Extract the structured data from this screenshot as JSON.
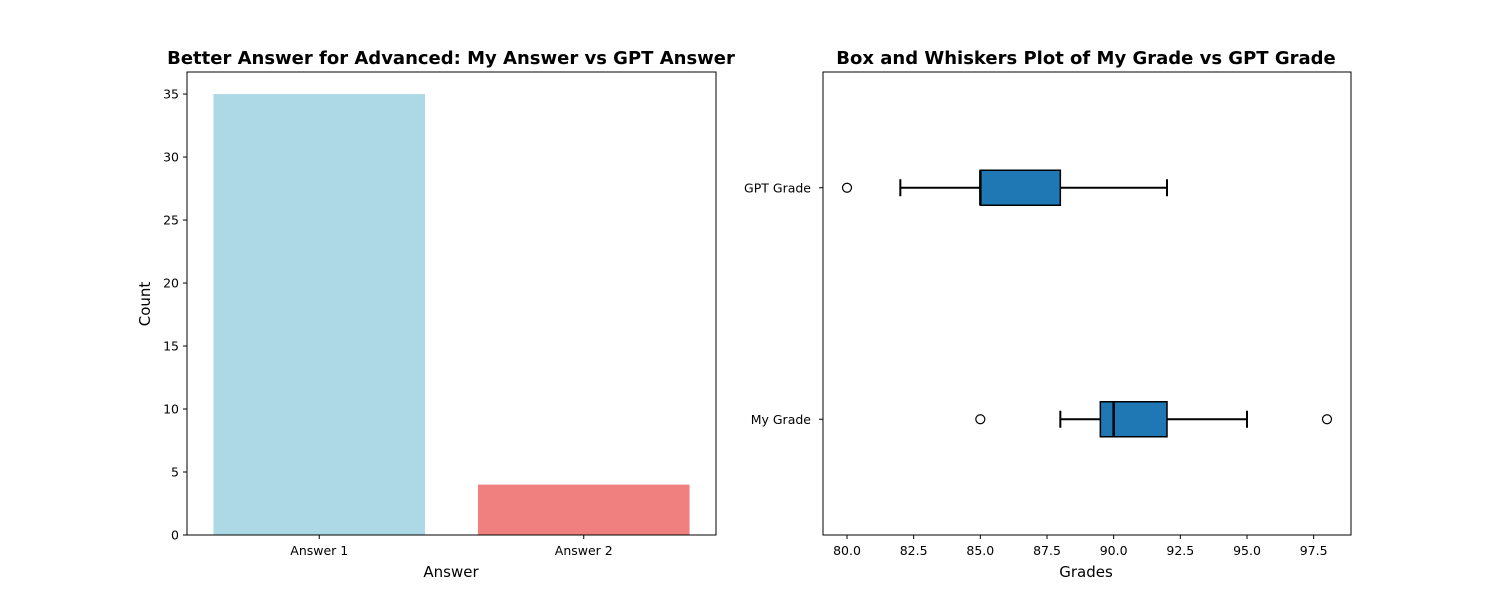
{
  "chart_data": [
    {
      "type": "bar",
      "title": "Better Answer for Advanced: My Answer vs GPT Answer",
      "xlabel": "Answer",
      "ylabel": "Count",
      "categories": [
        "Answer 1",
        "Answer 2"
      ],
      "values": [
        35,
        4
      ],
      "colors": [
        "#add8e6",
        "#f08080"
      ],
      "ylim": [
        0,
        36.75
      ],
      "yticks": [
        0,
        5,
        10,
        15,
        20,
        25,
        30,
        35
      ],
      "grid": false,
      "legend": "none"
    },
    {
      "type": "box",
      "orientation": "horizontal",
      "title": "Box and Whiskers Plot of My Grade vs GPT Grade",
      "xlabel": "Grades",
      "ylabel": "",
      "categories": [
        "My Grade",
        "GPT Grade"
      ],
      "box_color": "#1f77b4",
      "xlim": [
        79.1,
        98.9
      ],
      "xticks": [
        80.0,
        82.5,
        85.0,
        87.5,
        90.0,
        92.5,
        95.0,
        97.5
      ],
      "series": [
        {
          "name": "My Grade",
          "whisker_low": 88,
          "q1": 89.5,
          "median": 90,
          "q3": 92,
          "whisker_high": 95,
          "outliers": [
            85,
            98
          ]
        },
        {
          "name": "GPT Grade",
          "whisker_low": 82,
          "q1": 85,
          "median": 85,
          "q3": 88,
          "whisker_high": 92,
          "outliers": [
            80
          ]
        }
      ],
      "grid": false,
      "legend": "none"
    }
  ]
}
